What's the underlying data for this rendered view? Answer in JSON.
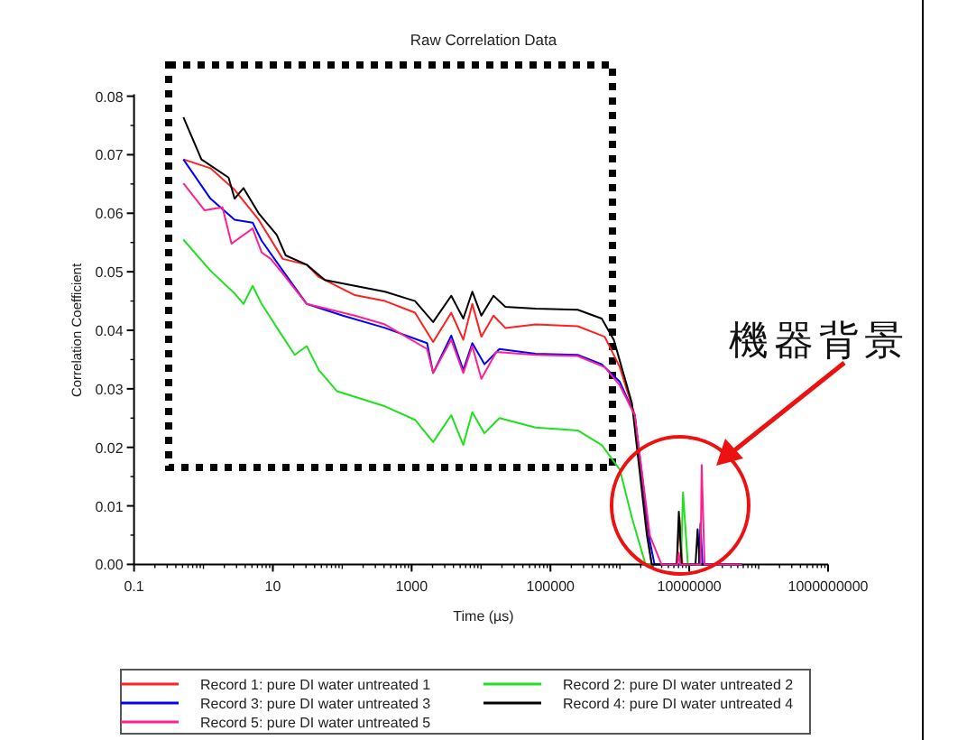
{
  "chart_data": {
    "type": "line",
    "title": "Raw Correlation Data",
    "xlabel": "Time (µs)",
    "ylabel": "Correlation Coefficient",
    "log": "x",
    "xlim": [
      0.1,
      1000000000
    ],
    "xticks": [
      0.1,
      10,
      1000,
      100000,
      10000000,
      1000000000
    ],
    "ylim": [
      0,
      0.08
    ],
    "yticks": [
      {
        "value": 0,
        "label": "0.00"
      },
      {
        "value": 0.01,
        "label": "0.01"
      },
      {
        "value": 0.02,
        "label": "0.02"
      },
      {
        "value": 0.03,
        "label": "0.03"
      },
      {
        "value": 0.04,
        "label": "0.04"
      },
      {
        "value": 0.05,
        "label": "0.05"
      },
      {
        "value": 0.06,
        "label": "0.06"
      },
      {
        "value": 0.07,
        "label": "0.07"
      },
      {
        "value": 0.08,
        "label": "0.08"
      }
    ],
    "legend": "bottom",
    "annotations": [
      "機器背景"
    ],
    "series": [
      {
        "name": "Record 1: pure DI water untreated 1",
        "color": "#ff2020",
        "x": [
          0.514,
          1.26,
          2.81,
          6.24,
          13.9,
          30.8,
          46.0,
          152,
          414,
          1120,
          2040,
          3720,
          5550,
          7480,
          10100,
          15100,
          22400,
          61000,
          247000,
          605000,
          998000,
          1640000,
          2450000,
          2880000,
          6610000,
          7240000,
          7940000,
          57500000
        ],
        "values": [
          0.0692,
          0.0677,
          0.064,
          0.0589,
          0.0522,
          0.0512,
          0.0491,
          0.046,
          0.045,
          0.043,
          0.038,
          0.043,
          0.0384,
          0.0445,
          0.0389,
          0.0425,
          0.0404,
          0.041,
          0.0407,
          0.0389,
          0.0337,
          0.0255,
          0.006,
          0,
          0,
          0.008,
          0,
          0
        ]
      },
      {
        "name": "Record 2: pure DI water untreated 2",
        "color": "#20e020",
        "x": [
          0.514,
          1.26,
          2.81,
          3.78,
          5.12,
          6.9,
          13.9,
          20.7,
          30.8,
          46.0,
          83.7,
          414,
          1120,
          2040,
          3720,
          5550,
          7480,
          11200,
          18400,
          61000,
          247000,
          548000,
          998000,
          1490000,
          2340000,
          7590000,
          8130000,
          9550000,
          57500000
        ],
        "values": [
          0.0555,
          0.0502,
          0.0463,
          0.0445,
          0.0476,
          0.0445,
          0.0389,
          0.0358,
          0.0373,
          0.0332,
          0.0296,
          0.027,
          0.0247,
          0.0209,
          0.0255,
          0.0204,
          0.026,
          0.0224,
          0.025,
          0.0234,
          0.0229,
          0.0204,
          0.0162,
          0.008,
          0,
          0,
          0.0123,
          0,
          0
        ]
      },
      {
        "name": "Record 3: pure DI water untreated 3",
        "color": "#0000ff",
        "x": [
          0.514,
          1.26,
          2.81,
          5.12,
          6.9,
          13.9,
          30.8,
          102,
          414,
          1670,
          2040,
          3720,
          5550,
          7480,
          11200,
          18400,
          61000,
          247000,
          548000,
          998000,
          1640000,
          2710000,
          3160000,
          13800000,
          14500000,
          15500000,
          57500000
        ],
        "values": [
          0.0692,
          0.0625,
          0.0589,
          0.0584,
          0.0553,
          0.0502,
          0.0445,
          0.0425,
          0.0404,
          0.0378,
          0.0327,
          0.0391,
          0.0332,
          0.0378,
          0.0342,
          0.0368,
          0.036,
          0.0358,
          0.0342,
          0.0312,
          0.0255,
          0.0039,
          0,
          0,
          0.007,
          0,
          0
        ]
      },
      {
        "name": "Record 4: pure DI water untreated 4",
        "color": "#000000",
        "x": [
          0.514,
          0.935,
          2.3,
          2.81,
          3.78,
          6.24,
          11.4,
          15.3,
          30.8,
          56.1,
          152,
          414,
          1120,
          2040,
          3720,
          5550,
          7480,
          10100,
          15100,
          22400,
          61000,
          247000,
          548000,
          817000,
          1490000,
          2450000,
          2880000,
          6610000,
          7080000,
          7760000,
          12300000,
          13200000,
          14100000,
          57500000
        ],
        "values": [
          0.0764,
          0.0692,
          0.0661,
          0.0625,
          0.0643,
          0.06,
          0.0563,
          0.0528,
          0.0512,
          0.0486,
          0.0476,
          0.0466,
          0.045,
          0.0414,
          0.0459,
          0.042,
          0.0466,
          0.0425,
          0.0459,
          0.044,
          0.0437,
          0.0435,
          0.042,
          0.0384,
          0.0276,
          0.005,
          0,
          0,
          0.009,
          0,
          0,
          0.006,
          0,
          0
        ]
      },
      {
        "name": "Record 5: pure DI water untreated 5",
        "color": "#ff2090",
        "x": [
          0.514,
          1.04,
          1.88,
          2.54,
          5.12,
          6.9,
          9.31,
          13.9,
          30.8,
          152,
          414,
          1670,
          2040,
          3720,
          5550,
          7480,
          10100,
          16600,
          61000,
          247000,
          605000,
          998000,
          1640000,
          2710000,
          3980000,
          6760000,
          7080000,
          7410000,
          14500000,
          15100000,
          16600000,
          57500000
        ],
        "values": [
          0.0651,
          0.0605,
          0.061,
          0.0548,
          0.0574,
          0.0533,
          0.0522,
          0.0497,
          0.0445,
          0.0425,
          0.041,
          0.0368,
          0.0327,
          0.0384,
          0.0327,
          0.0373,
          0.0317,
          0.0363,
          0.0358,
          0.0356,
          0.0337,
          0.0306,
          0.0255,
          0.0049,
          0,
          0,
          0.002,
          0,
          0,
          0.017,
          0,
          0
        ]
      }
    ]
  }
}
